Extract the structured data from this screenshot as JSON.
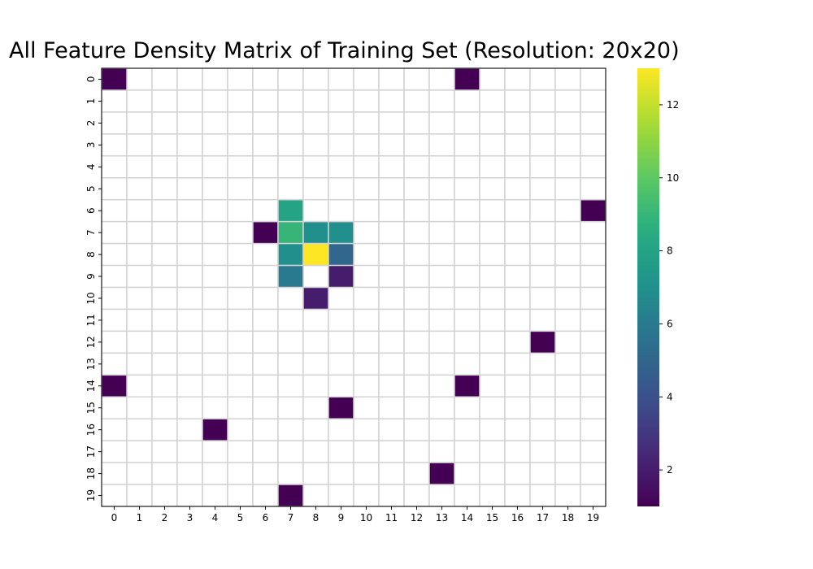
{
  "chart_data": {
    "type": "heatmap",
    "title": "All Feature Density Matrix of Training Set (Resolution: 20x20)",
    "rows": 20,
    "cols": 20,
    "x_tick_labels": [
      "0",
      "1",
      "2",
      "3",
      "4",
      "5",
      "6",
      "7",
      "8",
      "9",
      "10",
      "11",
      "12",
      "13",
      "14",
      "15",
      "16",
      "17",
      "18",
      "19"
    ],
    "y_tick_labels": [
      "0",
      "1",
      "2",
      "3",
      "4",
      "5",
      "6",
      "7",
      "8",
      "9",
      "10",
      "11",
      "12",
      "13",
      "14",
      "15",
      "16",
      "17",
      "18",
      "19"
    ],
    "cells": [
      {
        "row": 0,
        "col": 0,
        "value": 1
      },
      {
        "row": 0,
        "col": 14,
        "value": 1
      },
      {
        "row": 6,
        "col": 7,
        "value": 8
      },
      {
        "row": 6,
        "col": 19,
        "value": 1
      },
      {
        "row": 7,
        "col": 6,
        "value": 1
      },
      {
        "row": 7,
        "col": 7,
        "value": 9
      },
      {
        "row": 7,
        "col": 8,
        "value": 7
      },
      {
        "row": 7,
        "col": 9,
        "value": 7
      },
      {
        "row": 8,
        "col": 7,
        "value": 7
      },
      {
        "row": 8,
        "col": 8,
        "value": 13
      },
      {
        "row": 8,
        "col": 9,
        "value": 5
      },
      {
        "row": 9,
        "col": 7,
        "value": 6
      },
      {
        "row": 9,
        "col": 9,
        "value": 2
      },
      {
        "row": 10,
        "col": 8,
        "value": 2
      },
      {
        "row": 12,
        "col": 17,
        "value": 1
      },
      {
        "row": 14,
        "col": 0,
        "value": 1
      },
      {
        "row": 14,
        "col": 14,
        "value": 1
      },
      {
        "row": 15,
        "col": 9,
        "value": 1
      },
      {
        "row": 16,
        "col": 4,
        "value": 1
      },
      {
        "row": 18,
        "col": 13,
        "value": 1
      },
      {
        "row": 19,
        "col": 7,
        "value": 1
      }
    ],
    "empty_cell_color": "#ffffff",
    "grid_line_color": "#d3d3d3",
    "colormap": "viridis",
    "colorbar": {
      "min": 1,
      "max": 13,
      "ticks": [
        2,
        4,
        6,
        8,
        10,
        12
      ]
    },
    "grid": true,
    "legend": "colorbar-right"
  }
}
